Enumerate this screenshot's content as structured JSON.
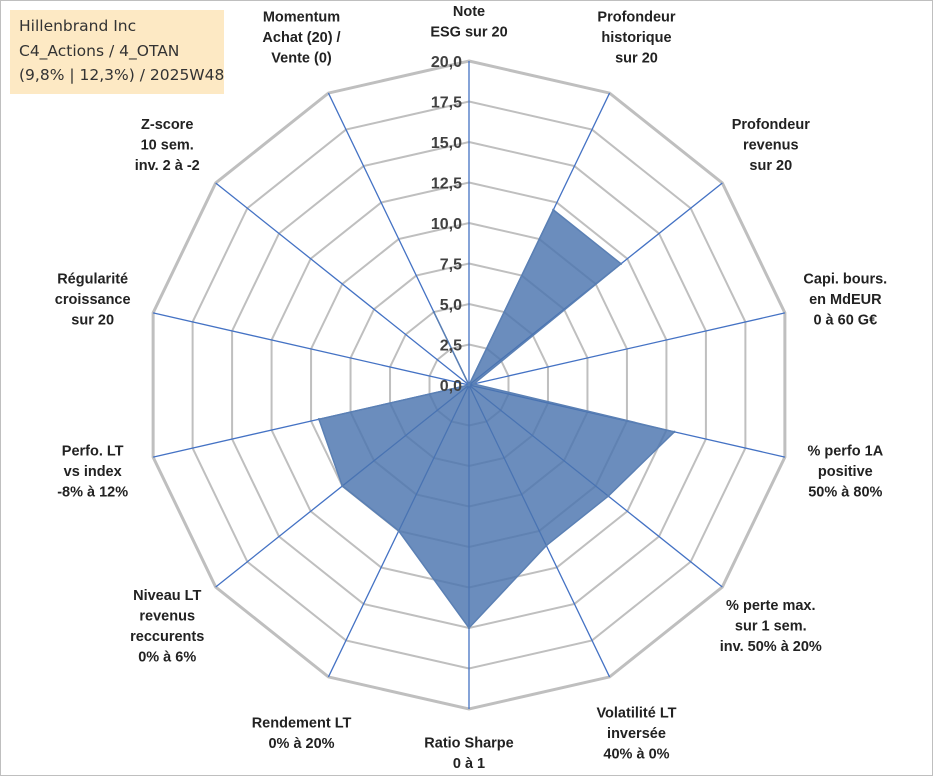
{
  "info": {
    "company": "Hillenbrand Inc",
    "portfolio": "C4_Actions / 4_OTAN",
    "stats": "(9,8% | 12,3%) / 2025W48"
  },
  "chart_data": {
    "type": "radar",
    "title": "",
    "rlim": [
      0,
      20
    ],
    "ticks": [
      "0,0",
      "2,5",
      "5,0",
      "7,5",
      "10,0",
      "12,5",
      "15,0",
      "17,5",
      "20,0"
    ],
    "grid": true,
    "axes": [
      [
        "Note",
        "ESG sur 20"
      ],
      [
        "Profondeur",
        "historique",
        "sur 20"
      ],
      [
        "Profondeur",
        "revenus",
        "sur 20"
      ],
      [
        "Capi. bours.",
        "en MdEUR",
        "0 à 60 G€"
      ],
      [
        "% perfo 1A",
        "positive",
        "50% à 80%"
      ],
      [
        "% perte max.",
        "sur 1 sem.",
        "inv. 50% à 20%"
      ],
      [
        "Volatilité LT",
        "inversée",
        "40% à 0%"
      ],
      [
        "Ratio Sharpe",
        "0 à 1"
      ],
      [
        "Rendement LT",
        "0% à 20%"
      ],
      [
        "Niveau LT",
        "revenus",
        "reccurents",
        "0% à 6%"
      ],
      [
        "Perfo. LT",
        "vs index",
        "-8% à 12%"
      ],
      [
        "Régularité",
        "croissance",
        "sur 20"
      ],
      [
        "Z-score",
        "10 sem.",
        "inv. 2 à -2"
      ],
      [
        "Momentum",
        "Achat (20) /",
        "Vente (0)"
      ]
    ],
    "series": [
      {
        "values": [
          0.0,
          12.0,
          12.0,
          0.3,
          13.0,
          11.0,
          11.0,
          15.0,
          10.0,
          10.0,
          9.5,
          0.0,
          0.0,
          5.0
        ],
        "color": "#5b80b4"
      }
    ],
    "colors": {
      "fill": "#4a74ae",
      "line": "#4472c4",
      "ring": "#bfbfbf"
    }
  }
}
